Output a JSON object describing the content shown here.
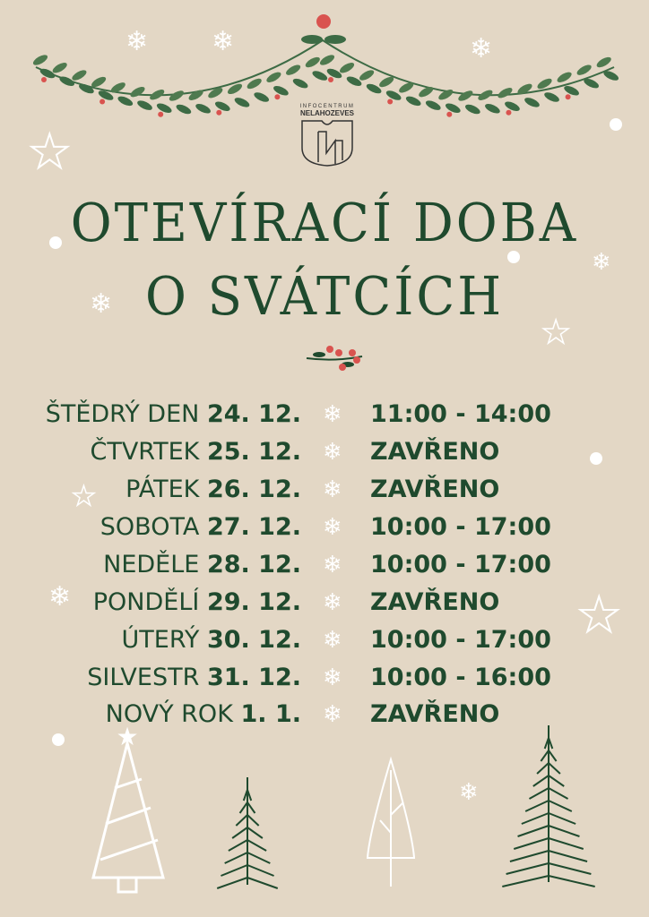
{
  "logo": {
    "line1": "INFOCENTRUM",
    "line2": "NELAHOZEVES"
  },
  "title": {
    "line1": "OTEVÍRACÍ DOBA",
    "line2": "O SVÁTCÍCH"
  },
  "colors": {
    "background": "#e3d7c5",
    "text": "#1f4a2e",
    "leaf": "#4f7a4f",
    "berry": "#d9534f"
  },
  "schedule": [
    {
      "day": "ŠTĚDRÝ DEN",
      "date": "24. 12.",
      "hours": "11:00 - 14:00"
    },
    {
      "day": "ČTVRTEK",
      "date": "25. 12.",
      "hours": "ZAVŘENO"
    },
    {
      "day": "PÁTEK",
      "date": "26. 12.",
      "hours": "ZAVŘENO"
    },
    {
      "day": "SOBOTA",
      "date": "27. 12.",
      "hours": "10:00 - 17:00"
    },
    {
      "day": "NEDĚLE",
      "date": "28. 12.",
      "hours": "10:00 - 17:00"
    },
    {
      "day": "PONDĚLÍ",
      "date": "29. 12.",
      "hours": "ZAVŘENO"
    },
    {
      "day": "ÚTERÝ",
      "date": "30. 12.",
      "hours": "10:00 - 17:00"
    },
    {
      "day": "SILVESTR",
      "date": "31. 12.",
      "hours": "10:00 - 16:00"
    },
    {
      "day": "NOVÝ ROK",
      "date": "1. 1.",
      "hours": "ZAVŘENO"
    }
  ]
}
